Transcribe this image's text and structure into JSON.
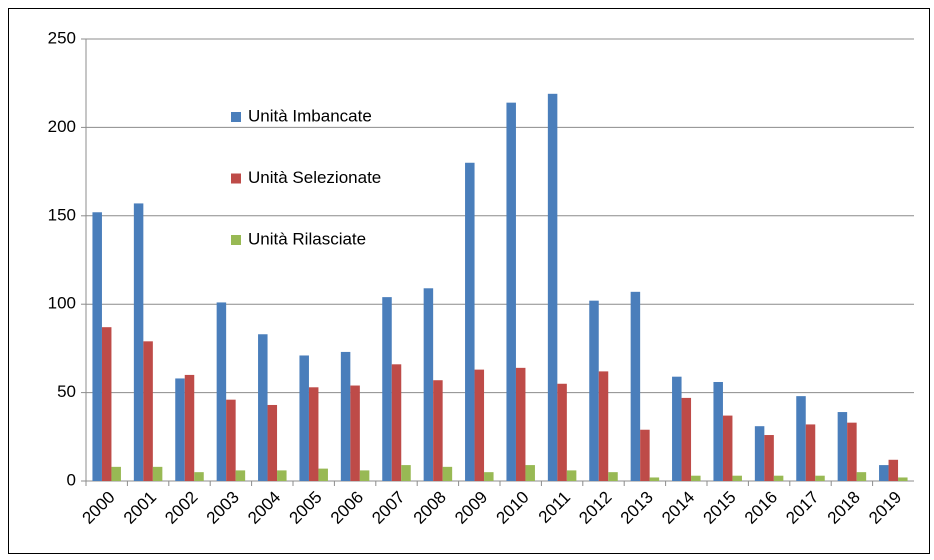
{
  "chart_data": {
    "type": "bar",
    "categories": [
      "2000",
      "2001",
      "2002",
      "2003",
      "2004",
      "2005",
      "2006",
      "2007",
      "2008",
      "2009",
      "2010",
      "2011",
      "2012",
      "2013",
      "2014",
      "2015",
      "2016",
      "2017",
      "2018",
      "2019"
    ],
    "series": [
      {
        "name": "Unità Imbancate",
        "color": "#4a7ebb",
        "values": [
          152,
          157,
          58,
          101,
          83,
          71,
          73,
          104,
          109,
          180,
          214,
          219,
          102,
          107,
          59,
          56,
          31,
          48,
          39,
          9
        ]
      },
      {
        "name": "Unità Selezionate",
        "color": "#be4b48",
        "values": [
          87,
          79,
          60,
          46,
          43,
          53,
          54,
          66,
          57,
          63,
          64,
          55,
          62,
          29,
          47,
          37,
          26,
          32,
          33,
          12
        ]
      },
      {
        "name": "Unità Rilasciate",
        "color": "#98b954",
        "values": [
          8,
          8,
          5,
          6,
          6,
          7,
          6,
          9,
          8,
          5,
          9,
          6,
          5,
          2,
          3,
          3,
          3,
          3,
          5,
          2
        ]
      }
    ],
    "ylim": [
      0,
      250
    ],
    "yticks": [
      0,
      50,
      100,
      150,
      200,
      250
    ],
    "grid": true,
    "legend": "top-left"
  }
}
